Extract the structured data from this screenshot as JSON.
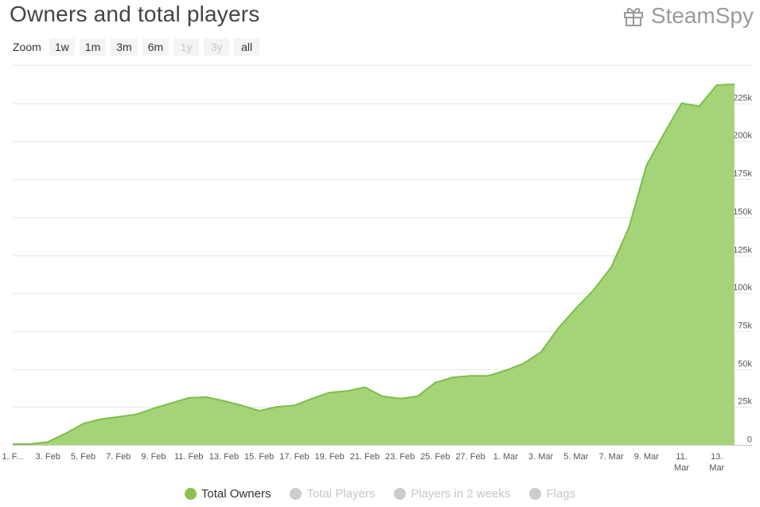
{
  "header": {
    "title": "Owners and total players",
    "brand": "SteamSpy",
    "brand_icon": "gift-icon"
  },
  "zoom": {
    "label": "Zoom",
    "buttons": [
      {
        "label": "1w",
        "enabled": true
      },
      {
        "label": "1m",
        "enabled": true
      },
      {
        "label": "3m",
        "enabled": true
      },
      {
        "label": "6m",
        "enabled": true
      },
      {
        "label": "1y",
        "enabled": false
      },
      {
        "label": "3y",
        "enabled": false
      },
      {
        "label": "all",
        "enabled": true
      }
    ]
  },
  "colors": {
    "area_fill": "#a5d478",
    "area_line": "#7cbd4b",
    "grid": "#e6e6e6",
    "inactive": "#cccccc"
  },
  "legend": [
    {
      "name": "Total Owners",
      "active": true,
      "color": "#8cc152"
    },
    {
      "name": "Total Players",
      "active": false,
      "color": "#cccccc"
    },
    {
      "name": "Players in 2 weeks",
      "active": false,
      "color": "#cccccc"
    },
    {
      "name": "Flags",
      "active": false,
      "color": "#cccccc"
    }
  ],
  "chart_data": {
    "type": "area",
    "title": "Owners and total players",
    "x_start_day": 1,
    "x_end_day": 43,
    "x_labels": [
      {
        "day": 1,
        "label": [
          "1. F..."
        ]
      },
      {
        "day": 3,
        "label": [
          "3. Feb"
        ]
      },
      {
        "day": 5,
        "label": [
          "5. Feb"
        ]
      },
      {
        "day": 7,
        "label": [
          "7. Feb"
        ]
      },
      {
        "day": 9,
        "label": [
          "9. Feb"
        ]
      },
      {
        "day": 11,
        "label": [
          "11. Feb"
        ]
      },
      {
        "day": 13,
        "label": [
          "13. Feb"
        ]
      },
      {
        "day": 15,
        "label": [
          "15. Feb"
        ]
      },
      {
        "day": 17,
        "label": [
          "17. Feb"
        ]
      },
      {
        "day": 19,
        "label": [
          "19. Feb"
        ]
      },
      {
        "day": 21,
        "label": [
          "21. Feb"
        ]
      },
      {
        "day": 23,
        "label": [
          "23. Feb"
        ]
      },
      {
        "day": 25,
        "label": [
          "25. Feb"
        ]
      },
      {
        "day": 27,
        "label": [
          "27. Feb"
        ]
      },
      {
        "day": 29,
        "label": [
          "1. Mar"
        ]
      },
      {
        "day": 31,
        "label": [
          "3. Mar"
        ]
      },
      {
        "day": 33,
        "label": [
          "5. Mar"
        ]
      },
      {
        "day": 35,
        "label": [
          "7. Mar"
        ]
      },
      {
        "day": 37,
        "label": [
          "9. Mar"
        ]
      },
      {
        "day": 39,
        "label": [
          "11.",
          "Mar"
        ]
      },
      {
        "day": 41,
        "label": [
          "13.",
          "Mar"
        ]
      }
    ],
    "y_axis": {
      "min": 0,
      "max": 250000,
      "ticks": [
        {
          "value": 0,
          "label": "0"
        },
        {
          "value": 25000,
          "label": "25k"
        },
        {
          "value": 50000,
          "label": "50k"
        },
        {
          "value": 75000,
          "label": "75k"
        },
        {
          "value": 100000,
          "label": "100k"
        },
        {
          "value": 125000,
          "label": "125k"
        },
        {
          "value": 150000,
          "label": "150k"
        },
        {
          "value": 175000,
          "label": "175k"
        },
        {
          "value": 200000,
          "label": "200k"
        },
        {
          "value": 225000,
          "label": "225k"
        }
      ],
      "grid": true,
      "position": "right"
    },
    "series": [
      {
        "name": "Total Owners",
        "points": [
          [
            1,
            500
          ],
          [
            2,
            600
          ],
          [
            3,
            2000
          ],
          [
            4,
            7500
          ],
          [
            5,
            14000
          ],
          [
            6,
            17000
          ],
          [
            7,
            18500
          ],
          [
            8,
            20000
          ],
          [
            9,
            24000
          ],
          [
            10,
            27500
          ],
          [
            11,
            31000
          ],
          [
            12,
            31500
          ],
          [
            13,
            29000
          ],
          [
            14,
            26000
          ],
          [
            15,
            22500
          ],
          [
            16,
            25000
          ],
          [
            17,
            26000
          ],
          [
            18,
            30500
          ],
          [
            19,
            34500
          ],
          [
            20,
            35500
          ],
          [
            21,
            38000
          ],
          [
            22,
            32000
          ],
          [
            23,
            30500
          ],
          [
            24,
            32000
          ],
          [
            25,
            41000
          ],
          [
            26,
            44500
          ],
          [
            27,
            45500
          ],
          [
            28,
            45500
          ],
          [
            29,
            49000
          ],
          [
            30,
            53500
          ],
          [
            31,
            61000
          ],
          [
            32,
            77000
          ],
          [
            33,
            90000
          ],
          [
            34,
            102000
          ],
          [
            35,
            117000
          ],
          [
            36,
            143000
          ],
          [
            37,
            184000
          ],
          [
            38,
            205000
          ],
          [
            39,
            225000
          ],
          [
            40,
            223000
          ],
          [
            41,
            237000
          ],
          [
            42,
            237500
          ]
        ]
      }
    ]
  }
}
